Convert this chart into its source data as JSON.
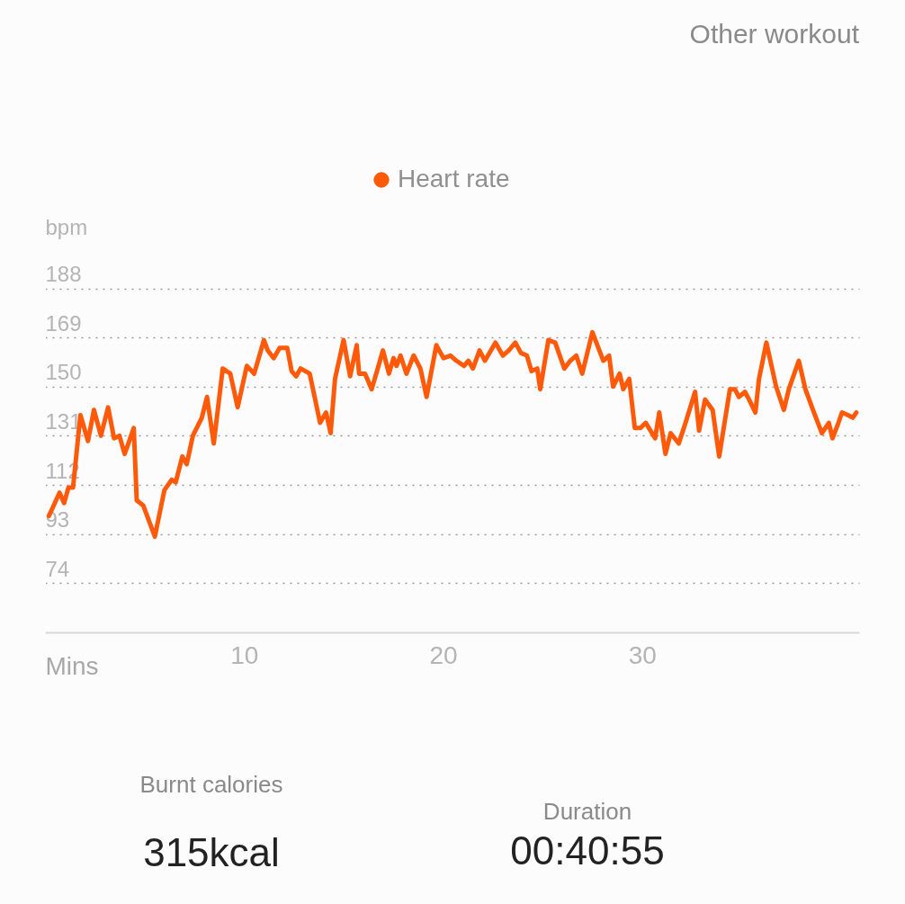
{
  "chart_data": {
    "type": "line",
    "title": "Other workout",
    "xlabel": "Mins",
    "ylabel": "bpm",
    "x": [
      0.2,
      0.73,
      0.96,
      1.18,
      1.41,
      1.78,
      2.16,
      2.46,
      2.81,
      3.17,
      3.47,
      3.74,
      4.0,
      4.19,
      4.46,
      4.61,
      4.94,
      5.52,
      6.0,
      6.37,
      6.57,
      6.9,
      7.12,
      7.43,
      7.88,
      8.14,
      8.48,
      8.93,
      9.31,
      9.68,
      10.14,
      10.51,
      11.0,
      11.19,
      11.49,
      11.79,
      12.17,
      12.39,
      12.62,
      12.84,
      13.3,
      13.82,
      14.12,
      14.35,
      14.57,
      15.0,
      15.33,
      15.66,
      15.78,
      16.08,
      16.41,
      16.68,
      16.98,
      17.28,
      17.51,
      17.66,
      17.86,
      18.16,
      18.52,
      18.86,
      19.17,
      19.66,
      20.02,
      20.37,
      20.67,
      21.05,
      21.27,
      21.5,
      21.83,
      22.1,
      22.63,
      23.0,
      23.3,
      23.63,
      23.91,
      24.21,
      24.44,
      24.73,
      24.88,
      25.29,
      25.63,
      26.09,
      26.39,
      26.69,
      26.99,
      27.5,
      28.05,
      28.34,
      28.54,
      28.87,
      29.05,
      29.35,
      29.63,
      29.92,
      30.18,
      30.65,
      30.86,
      31.17,
      31.43,
      31.84,
      32.18,
      32.66,
      32.86,
      33.16,
      33.54,
      33.87,
      34.41,
      34.66,
      34.86,
      35.16,
      35.37,
      35.69,
      35.87,
      36.24,
      36.73,
      37.12,
      37.37,
      37.87,
      38.2,
      38.58,
      39.03,
      39.38,
      39.56,
      39.86,
      40.04,
      40.34,
      40.58,
      40.76
    ],
    "series": [
      {
        "name": "Heart rate",
        "color": "#ff5a0a",
        "values": [
          100,
          109,
          105,
          111,
          111,
          139,
          129,
          141,
          131,
          142,
          130,
          131,
          124,
          128,
          134,
          106,
          104,
          92,
          110,
          114,
          113,
          123,
          120,
          131,
          138,
          146,
          128,
          157,
          155,
          142,
          158,
          155,
          168,
          164,
          161,
          165,
          165,
          156,
          154,
          157,
          155,
          136,
          140,
          132,
          153,
          168,
          154,
          166,
          155,
          155,
          149,
          156,
          164,
          155,
          161,
          158,
          162,
          155,
          162,
          157,
          146,
          166,
          161,
          162,
          160,
          158,
          160,
          157,
          164,
          160,
          167,
          162,
          164,
          167,
          163,
          162,
          156,
          157,
          149,
          168,
          167,
          157,
          160,
          162,
          155,
          171,
          160,
          162,
          150,
          155,
          149,
          153,
          134,
          134,
          136,
          130,
          140,
          124,
          132,
          128,
          136,
          148,
          133,
          145,
          141,
          123,
          149,
          149,
          146,
          148,
          145,
          140,
          153,
          167,
          150,
          141,
          149,
          160,
          149,
          141,
          132,
          136,
          130,
          136,
          140,
          139,
          138,
          140
        ]
      }
    ],
    "xlim": [
      0,
      40.9
    ],
    "xticks": [
      10,
      20,
      30
    ],
    "ylim": [
      55,
      200
    ],
    "yticks": [
      74,
      93,
      112,
      131,
      150,
      169,
      188
    ],
    "grid": "y",
    "legend": "top",
    "marker": "none",
    "line_style": "solid",
    "annotations": [
      "Burnt calories",
      "315kcal",
      "Duration",
      "00:40:55"
    ]
  }
}
